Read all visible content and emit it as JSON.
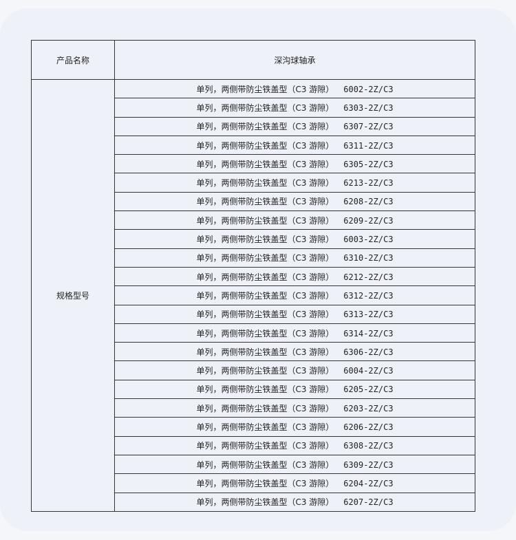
{
  "header": {
    "col1": "产品名称",
    "col2": "深沟球轴承"
  },
  "spec_label": "规格型号",
  "rows": [
    {
      "desc": "单列，两侧带防尘铁盖型（C3 游隙）",
      "model": "6002-2Z/C3"
    },
    {
      "desc": "单列，两侧带防尘铁盖型（C3 游隙）",
      "model": "6303-2Z/C3"
    },
    {
      "desc": "单列，两侧带防尘铁盖型（C3 游隙）",
      "model": "6307-2Z/C3"
    },
    {
      "desc": "单列，两侧带防尘铁盖型（C3 游隙）",
      "model": "6311-2Z/C3"
    },
    {
      "desc": "单列，两侧带防尘铁盖型（C3 游隙）",
      "model": "6305-2Z/C3"
    },
    {
      "desc": "单列，两侧带防尘铁盖型（C3 游隙）",
      "model": "6213-2Z/C3"
    },
    {
      "desc": "单列，两侧带防尘铁盖型（C3 游隙）",
      "model": "6208-2Z/C3"
    },
    {
      "desc": "单列，两侧带防尘铁盖型（C3 游隙）",
      "model": "6209-2Z/C3"
    },
    {
      "desc": "单列，两侧带防尘铁盖型（C3 游隙）",
      "model": "6003-2Z/C3"
    },
    {
      "desc": "单列，两侧带防尘铁盖型（C3 游隙）",
      "model": "6310-2Z/C3"
    },
    {
      "desc": "单列，两侧带防尘铁盖型（C3 游隙）",
      "model": "6212-2Z/C3"
    },
    {
      "desc": "单列，两侧带防尘铁盖型（C3 游隙）",
      "model": "6312-2Z/C3"
    },
    {
      "desc": "单列，两侧带防尘铁盖型（C3 游隙）",
      "model": "6313-2Z/C3"
    },
    {
      "desc": "单列，两侧带防尘铁盖型（C3 游隙）",
      "model": "6314-2Z/C3"
    },
    {
      "desc": "单列，两侧带防尘铁盖型（C3 游隙）",
      "model": "6306-2Z/C3"
    },
    {
      "desc": "单列，两侧带防尘铁盖型（C3 游隙）",
      "model": "6004-2Z/C3"
    },
    {
      "desc": "单列，两侧带防尘铁盖型（C3 游隙）",
      "model": "6205-2Z/C3"
    },
    {
      "desc": "单列，两侧带防尘铁盖型（C3 游隙）",
      "model": "6203-2Z/C3"
    },
    {
      "desc": "单列，两侧带防尘铁盖型（C3 游隙）",
      "model": "6206-2Z/C3"
    },
    {
      "desc": "单列，两侧带防尘铁盖型（C3 游隙）",
      "model": "6308-2Z/C3"
    },
    {
      "desc": "单列，两侧带防尘铁盖型（C3 游隙）",
      "model": "6309-2Z/C3"
    },
    {
      "desc": "单列，两侧带防尘铁盖型（C3 游隙）",
      "model": "6204-2Z/C3"
    },
    {
      "desc": "单列，两侧带防尘铁盖型（C3 游隙）",
      "model": "6207-2Z/C3"
    }
  ]
}
